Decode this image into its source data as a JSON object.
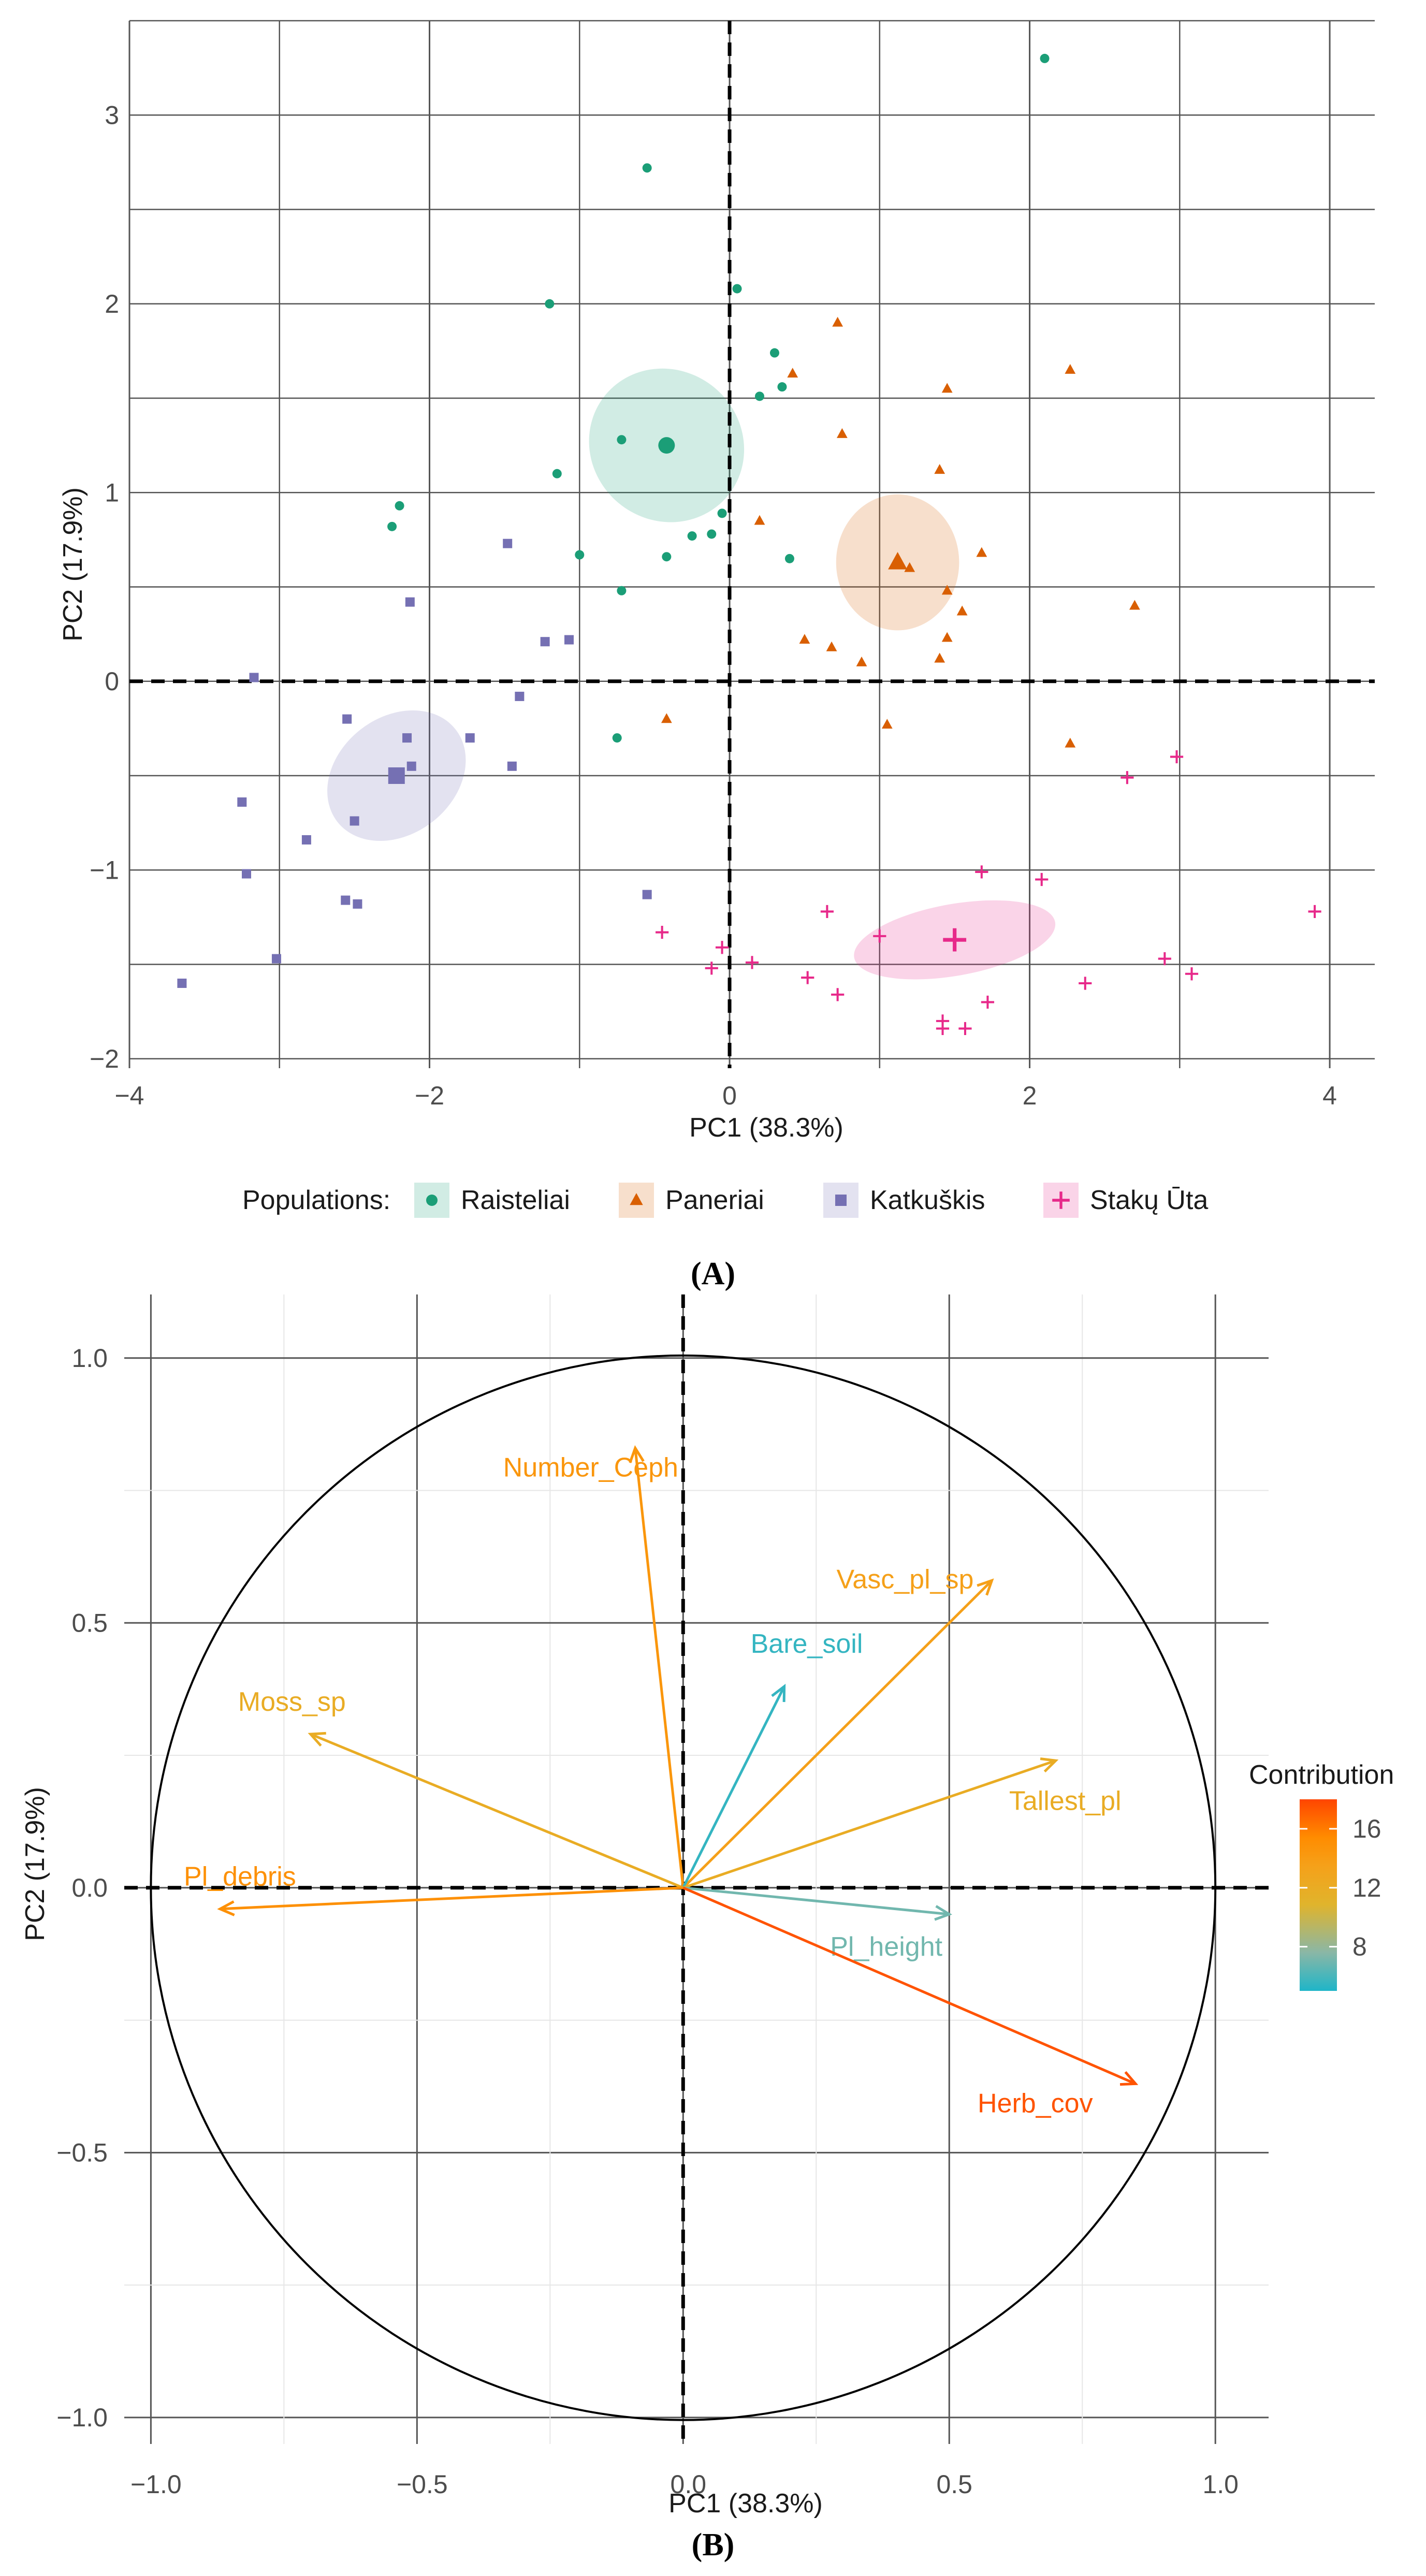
{
  "chart_data": [
    {
      "type": "scatter",
      "panel_label": "(A)",
      "xlabel": "PC1 (38.3%)",
      "ylabel": "PC2 (17.9%)",
      "xlim": [
        -4,
        4.3
      ],
      "ylim": [
        -2.05,
        3.5
      ],
      "xticks": [
        -4,
        -2,
        0,
        2,
        4
      ],
      "xtick_labels": [
        "−4",
        "−2",
        "0",
        "2",
        "4"
      ],
      "yticks": [
        -2,
        -1,
        0,
        1,
        2,
        3
      ],
      "ytick_labels": [
        "−2",
        "−1",
        "0",
        "1",
        "2",
        "3"
      ],
      "legend": {
        "title": "Populations:",
        "position": "bottom"
      },
      "series": [
        {
          "name": "Raisteliai",
          "color": "#1b9e77",
          "shape": "circle",
          "centroid": [
            -0.42,
            1.25
          ],
          "ellipse": {
            "rx": 0.5,
            "ry": 0.42,
            "angle": 50
          },
          "points": [
            [
              2.1,
              3.3
            ],
            [
              -0.55,
              2.72
            ],
            [
              -1.2,
              2.0
            ],
            [
              0.05,
              2.08
            ],
            [
              0.3,
              1.74
            ],
            [
              0.2,
              1.51
            ],
            [
              0.35,
              1.56
            ],
            [
              -0.72,
              1.28
            ],
            [
              -1.15,
              1.1
            ],
            [
              -2.2,
              0.93
            ],
            [
              -2.25,
              0.82
            ],
            [
              -0.05,
              0.89
            ],
            [
              -0.12,
              0.78
            ],
            [
              -0.25,
              0.77
            ],
            [
              -0.42,
              0.66
            ],
            [
              -1.0,
              0.67
            ],
            [
              -0.72,
              0.48
            ],
            [
              0.4,
              0.65
            ],
            [
              -0.75,
              -0.3
            ]
          ]
        },
        {
          "name": "Paneriai",
          "color": "#d95f02",
          "shape": "triangle",
          "centroid": [
            1.12,
            0.63
          ],
          "ellipse": {
            "rx": 0.41,
            "ry": 0.36,
            "angle": 0
          },
          "points": [
            [
              0.72,
              1.9
            ],
            [
              0.42,
              1.63
            ],
            [
              1.45,
              1.55
            ],
            [
              2.27,
              1.65
            ],
            [
              0.75,
              1.31
            ],
            [
              1.4,
              1.12
            ],
            [
              0.2,
              0.85
            ],
            [
              1.68,
              0.68
            ],
            [
              1.2,
              0.6
            ],
            [
              2.7,
              0.4
            ],
            [
              1.45,
              0.48
            ],
            [
              1.55,
              0.37
            ],
            [
              0.5,
              0.22
            ],
            [
              0.68,
              0.18
            ],
            [
              0.88,
              0.1
            ],
            [
              1.45,
              0.23
            ],
            [
              1.4,
              0.12
            ],
            [
              -0.42,
              -0.2
            ],
            [
              1.05,
              -0.23
            ],
            [
              2.27,
              -0.33
            ]
          ]
        },
        {
          "name": "Katkuškis",
          "color": "#7570b3",
          "shape": "square",
          "centroid": [
            -2.22,
            -0.5
          ],
          "ellipse": {
            "rx": 0.5,
            "ry": 0.31,
            "angle": 38
          },
          "points": [
            [
              -1.48,
              0.73
            ],
            [
              -2.13,
              0.42
            ],
            [
              -3.17,
              0.02
            ],
            [
              -1.07,
              0.22
            ],
            [
              -1.23,
              0.21
            ],
            [
              -1.4,
              -0.08
            ],
            [
              -2.15,
              -0.3
            ],
            [
              -1.73,
              -0.3
            ],
            [
              -2.55,
              -0.2
            ],
            [
              -2.12,
              -0.45
            ],
            [
              -1.45,
              -0.45
            ],
            [
              -2.22,
              -0.5
            ],
            [
              -3.25,
              -0.64
            ],
            [
              -2.82,
              -0.84
            ],
            [
              -2.5,
              -0.74
            ],
            [
              -3.22,
              -1.02
            ],
            [
              -2.56,
              -1.16
            ],
            [
              -2.48,
              -1.18
            ],
            [
              -3.02,
              -1.47
            ],
            [
              -3.65,
              -1.6
            ],
            [
              -0.55,
              -1.13
            ]
          ]
        },
        {
          "name": "Stakų Ūta",
          "color": "#e7298a",
          "shape": "cross",
          "centroid": [
            1.5,
            -1.37
          ],
          "ellipse": {
            "rx": 0.68,
            "ry": 0.19,
            "angle": 10
          },
          "points": [
            [
              2.65,
              -0.51
            ],
            [
              2.98,
              -0.4
            ],
            [
              3.9,
              -1.22
            ],
            [
              1.68,
              -1.01
            ],
            [
              2.08,
              -1.05
            ],
            [
              0.65,
              -1.22
            ],
            [
              1.0,
              -1.35
            ],
            [
              -0.45,
              -1.33
            ],
            [
              -0.05,
              -1.41
            ],
            [
              -0.12,
              -1.52
            ],
            [
              0.15,
              -1.49
            ],
            [
              0.52,
              -1.57
            ],
            [
              0.72,
              -1.66
            ],
            [
              2.37,
              -1.6
            ],
            [
              2.9,
              -1.47
            ],
            [
              3.08,
              -1.55
            ],
            [
              1.72,
              -1.7
            ],
            [
              1.42,
              -1.8
            ],
            [
              1.42,
              -1.84
            ],
            [
              1.57,
              -1.84
            ]
          ]
        }
      ]
    },
    {
      "type": "biplot",
      "panel_label": "(B)",
      "xlabel": "PC1 (38.3%)",
      "ylabel": "PC2 (17.9%)",
      "xlim": [
        -1.05,
        1.1
      ],
      "ylim": [
        -1.05,
        1.12
      ],
      "xticks": [
        -1.0,
        -0.5,
        0.0,
        0.5,
        1.0
      ],
      "xtick_labels": [
        "−1.0",
        "−0.5",
        "0.0",
        "0.5",
        "1.0"
      ],
      "yticks": [
        -1.0,
        -0.5,
        0.0,
        0.5,
        1.0
      ],
      "ytick_labels": [
        "−1.0",
        "−0.5",
        "0.0",
        "0.5",
        "1.0"
      ],
      "legend": {
        "title": "Contribution",
        "ticks": [
          8,
          12,
          16
        ],
        "tick_labels": [
          "8",
          "12",
          "16"
        ],
        "range": [
          5,
          18
        ],
        "position": "right"
      },
      "colorscale": [
        "#1fb5c8",
        "#8ab7a6",
        "#e0b42c",
        "#f5a11a",
        "#ff8c00",
        "#ff4500"
      ],
      "arrows": [
        {
          "name": "Number_Ceph",
          "x": -0.09,
          "y": 0.83,
          "contribution": 14.5
        },
        {
          "name": "Vasc_pl_sp",
          "x": 0.58,
          "y": 0.58,
          "contribution": 13.5
        },
        {
          "name": "Bare_soil",
          "x": 0.19,
          "y": 0.38,
          "contribution": 5.5
        },
        {
          "name": "Moss_sp",
          "x": -0.7,
          "y": 0.29,
          "contribution": 12.0
        },
        {
          "name": "Tallest_pl",
          "x": 0.7,
          "y": 0.24,
          "contribution": 12.0
        },
        {
          "name": "Pl_debris",
          "x": -0.87,
          "y": -0.04,
          "contribution": 15.0
        },
        {
          "name": "Pl_height",
          "x": 0.5,
          "y": -0.05,
          "contribution": 7.0
        },
        {
          "name": "Herb_cov",
          "x": 0.85,
          "y": -0.37,
          "contribution": 17.5
        }
      ]
    }
  ]
}
